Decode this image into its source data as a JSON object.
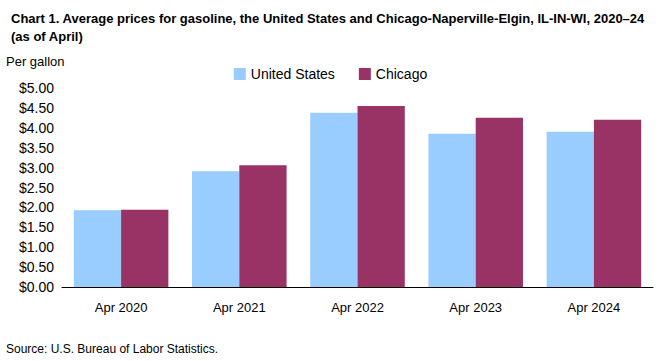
{
  "chart_data": {
    "type": "bar",
    "title": "Chart 1. Average prices for gasoline, the United States and Chicago-Naperville-Elgin, IL-IN-WI, 2020–24 (as of April)",
    "y_label": "Per gallon",
    "source": "Source: U.S. Bureau of Labor Statistics.",
    "categories": [
      "Apr 2020",
      "Apr 2021",
      "Apr 2022",
      "Apr 2023",
      "Apr 2024"
    ],
    "series": [
      {
        "name": "United States",
        "color": "#99ccff",
        "values": [
          1.93,
          2.91,
          4.38,
          3.85,
          3.9
        ]
      },
      {
        "name": "Chicago",
        "color": "#993366",
        "values": [
          1.94,
          3.06,
          4.55,
          4.25,
          4.2
        ]
      }
    ],
    "ylim": [
      0,
      5
    ],
    "yticks": [
      {
        "value": 0,
        "label": "$0.00"
      },
      {
        "value": 0.5,
        "label": "$0.50"
      },
      {
        "value": 1,
        "label": "$1.00"
      },
      {
        "value": 1.5,
        "label": "$1.50"
      },
      {
        "value": 2,
        "label": "$2.00"
      },
      {
        "value": 2.5,
        "label": "$2.50"
      },
      {
        "value": 3,
        "label": "$3.00"
      },
      {
        "value": 3.5,
        "label": "$3.50"
      },
      {
        "value": 4,
        "label": "$4.00"
      },
      {
        "value": 4.5,
        "label": "$4.50"
      },
      {
        "value": 5,
        "label": "$5.00"
      }
    ],
    "grid": false,
    "legend": "top"
  }
}
